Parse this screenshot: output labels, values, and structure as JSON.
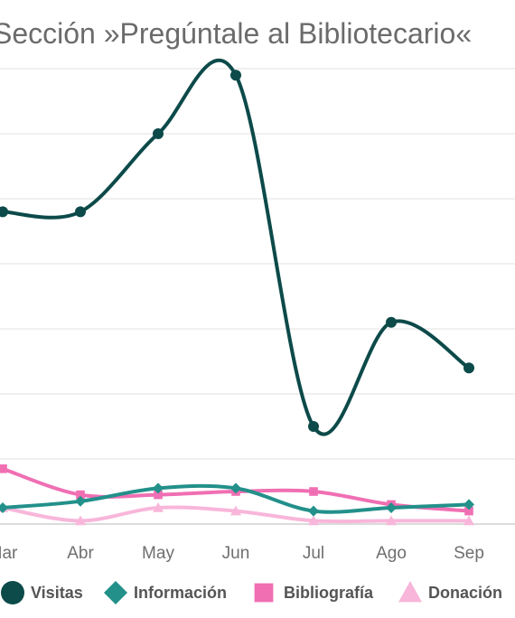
{
  "chart_data": {
    "type": "line",
    "title": "Sección »Pregúntale al Bibliotecario«",
    "categories": [
      "Mar",
      "Abr",
      "May",
      "Jun",
      "Jul",
      "Ago",
      "Sep"
    ],
    "ylim": [
      0,
      7
    ],
    "grid": true,
    "legend_position": "bottom",
    "series": [
      {
        "name": "Visitas",
        "color": "#0d4a4a",
        "marker": "circle",
        "values": [
          4.8,
          4.8,
          6.0,
          6.9,
          1.5,
          3.1,
          2.4
        ]
      },
      {
        "name": "Información",
        "color": "#23908a",
        "marker": "diamond",
        "values": [
          0.25,
          0.35,
          0.55,
          0.55,
          0.2,
          0.25,
          0.3
        ]
      },
      {
        "name": "Bibliografía",
        "color": "#f06fb3",
        "marker": "square",
        "values": [
          0.85,
          0.45,
          0.45,
          0.5,
          0.5,
          0.3,
          0.2
        ]
      },
      {
        "name": "Donación",
        "color": "#f8b6da",
        "marker": "triangle",
        "values": [
          0.25,
          0.05,
          0.25,
          0.2,
          0.05,
          0.05,
          0.05
        ]
      }
    ]
  }
}
